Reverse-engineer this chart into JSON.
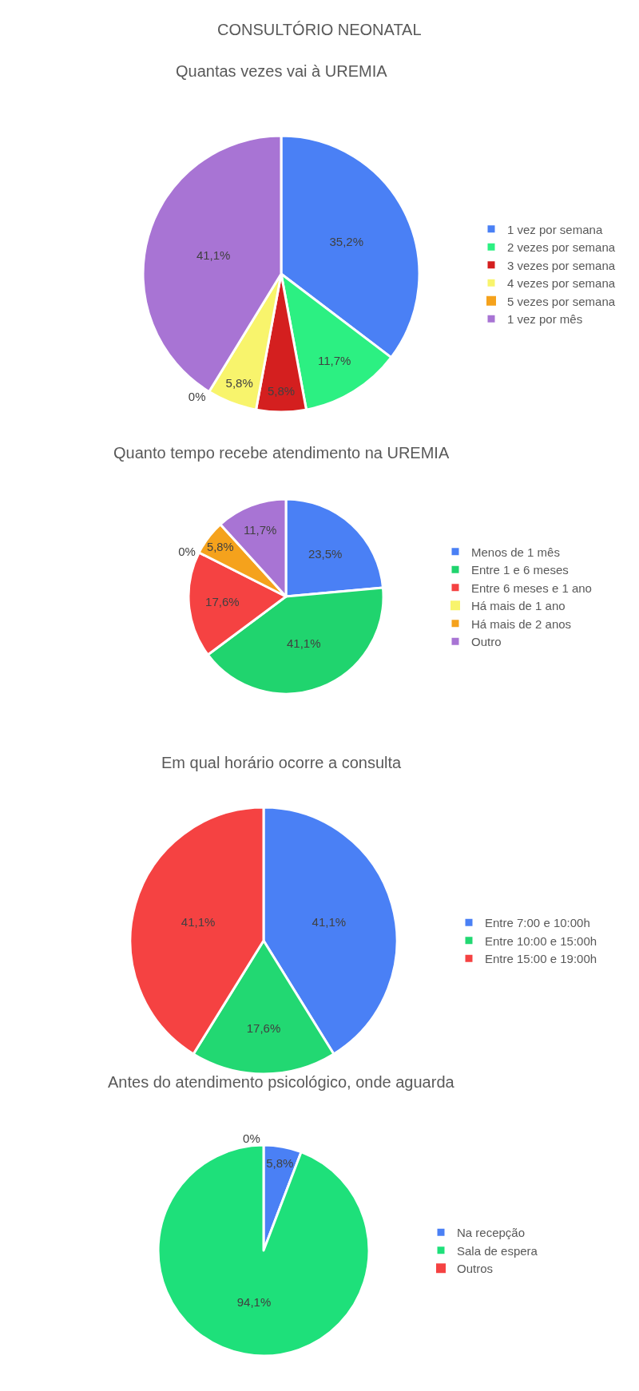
{
  "chart_data": [
    {
      "type": "pie",
      "title": "CONSULTÓRIO NEONATAL",
      "subtitle": "Quantas vezes vai à UREMIA",
      "legend": "right",
      "categories": [
        "1 vez por semana",
        "2 vezes por semana",
        "3 vezes por semana",
        "4 vezes por semana",
        "5 vezes por semana",
        "1 vez por mês"
      ],
      "values": [
        35.2,
        11.7,
        5.8,
        5.8,
        0,
        41.1
      ],
      "value_labels": [
        "35,2%",
        "11,7%",
        "5,8%",
        "5,8%",
        "0%",
        "41,1%"
      ],
      "colors": [
        "#4a80f5",
        "#2cf082",
        "#d41f1f",
        "#f8f46c",
        "#f5a21c",
        "#a874d4"
      ]
    },
    {
      "type": "pie",
      "title": "Quanto tempo recebe atendimento na UREMIA",
      "legend": "right",
      "categories": [
        "Menos de 1 mês",
        "Entre 1 e 6 meses",
        "Entre 6 meses e 1 ano",
        "Há mais de 1 ano",
        "Há mais de 2 anos",
        "Outro"
      ],
      "values": [
        23.5,
        41.1,
        17.6,
        0,
        5.8,
        11.7
      ],
      "value_labels": [
        "23,5%",
        "41,1%",
        "17,6%",
        "0%",
        "5,8%",
        "11,7%"
      ],
      "colors": [
        "#4a80f5",
        "#20d46e",
        "#f54242",
        "#f8f46c",
        "#f5a21c",
        "#a874d4"
      ]
    },
    {
      "type": "pie",
      "title": "Em qual horário ocorre a consulta",
      "legend": "right",
      "categories": [
        "Entre 7:00 e 10:00h",
        "Entre 10:00 e 15:00h",
        "Entre 15:00 e 19:00h"
      ],
      "values": [
        41.1,
        17.6,
        41.1
      ],
      "value_labels": [
        "41,1%",
        "17,6%",
        "41,1%"
      ],
      "colors": [
        "#4a80f5",
        "#22d872",
        "#f54242"
      ]
    },
    {
      "type": "pie",
      "title": "Antes do atendimento psicológico, onde aguarda",
      "legend": "right",
      "categories": [
        "Na recepção",
        "Sala de espera",
        "Outros"
      ],
      "values": [
        5.8,
        94.1,
        0
      ],
      "value_labels": [
        "5,8%",
        "94,1%",
        "0%"
      ],
      "colors": [
        "#4a80f5",
        "#1ee07a",
        "#f54242"
      ]
    }
  ]
}
